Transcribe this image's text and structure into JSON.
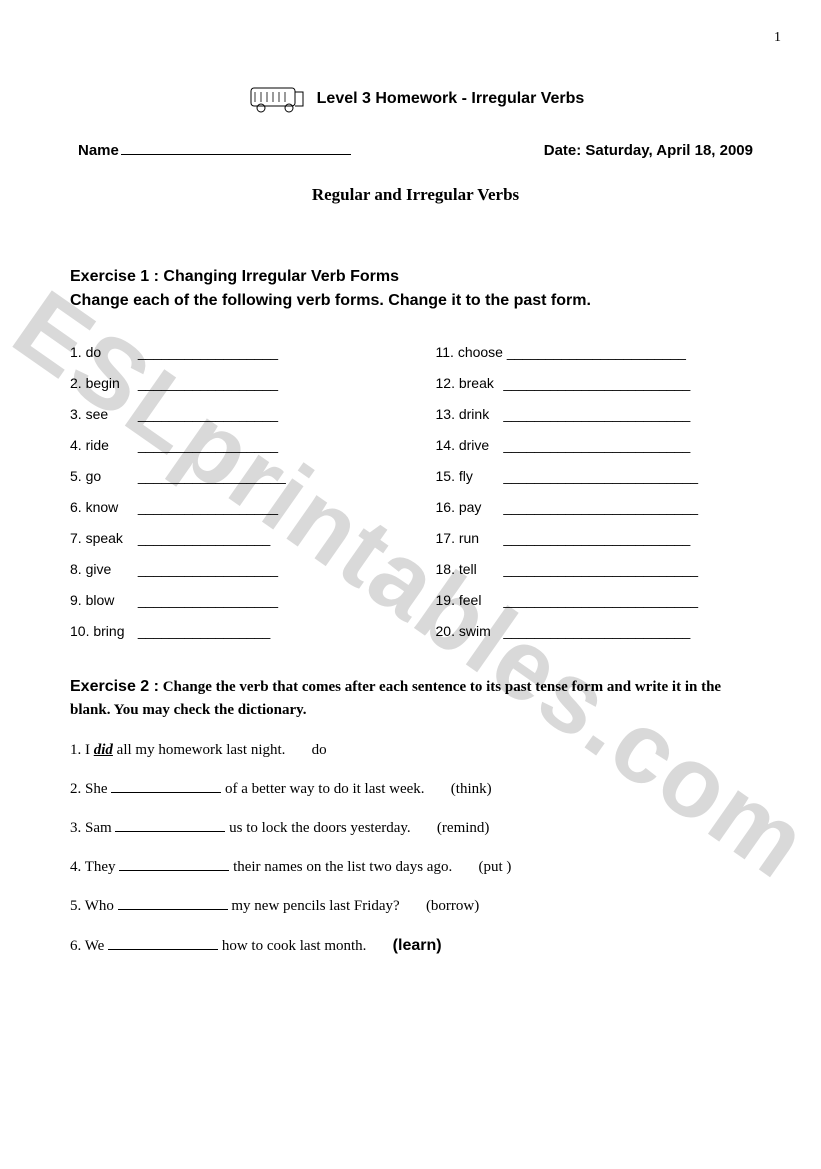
{
  "page_number": "1",
  "header": {
    "title": "Level 3  Homework - Irregular Verbs",
    "name_label": "Name",
    "date_label": "Date: Saturday, April 18, 2009",
    "subtitle": "Regular and Irregular Verbs"
  },
  "watermark": "ESLprintables.com",
  "exercise1": {
    "title_line1": "Exercise 1 : Changing Irregular Verb Forms",
    "title_line2": "Change each of the following verb forms.    Change it to the past form.",
    "left": [
      {
        "n": "1.",
        "w": "do",
        "b": "__________________"
      },
      {
        "n": "2.",
        "w": "begin",
        "b": "__________________"
      },
      {
        "n": "3.",
        "w": "see",
        "b": "__________________"
      },
      {
        "n": "4.",
        "w": "ride",
        "b": "__________________"
      },
      {
        "n": "5.",
        "w": "go",
        "b": "___________________"
      },
      {
        "n": "6.",
        "w": "know",
        "b": "__________________"
      },
      {
        "n": "7.",
        "w": "speak",
        "b": "_________________"
      },
      {
        "n": "8.",
        "w": "give",
        "b": "__________________"
      },
      {
        "n": "9.",
        "w": "blow",
        "b": "__________________"
      },
      {
        "n": "10.",
        "w": "bring",
        "b": "_________________"
      }
    ],
    "right": [
      {
        "n": "11.",
        "w": "choose",
        "b": "_______________________"
      },
      {
        "n": "12.",
        "w": "break",
        "b": "________________________"
      },
      {
        "n": "13.",
        "w": "drink",
        "b": "________________________"
      },
      {
        "n": "14.",
        "w": "drive",
        "b": "________________________"
      },
      {
        "n": "15.",
        "w": "fly",
        "b": "_________________________"
      },
      {
        "n": "16.",
        "w": "pay",
        "b": "_________________________"
      },
      {
        "n": "17.",
        "w": "run",
        "b": "________________________"
      },
      {
        "n": "18.",
        "w": "tell",
        "b": "_________________________"
      },
      {
        "n": "19.",
        "w": "feel",
        "b": "_________________________"
      },
      {
        "n": "20.",
        "w": "swim",
        "b": "________________________"
      }
    ]
  },
  "exercise2": {
    "lead": "Exercise 2 :",
    "rest": " Change the verb that comes after each sentence to its past tense form and write it in the blank. You may check the dictionary.",
    "sentences": [
      {
        "pre": "1. I ",
        "did": "did",
        "post": " all my homework last night.",
        "verb": "do",
        "paren": false,
        "bold": false
      },
      {
        "pre": "2. She ",
        "post": " of a better way to do it last week.",
        "verb": "(think)",
        "paren": true,
        "bold": false
      },
      {
        "pre": "3. Sam ",
        "post": " us to lock the doors yesterday.",
        "verb": "(remind)",
        "paren": true,
        "bold": false
      },
      {
        "pre": "4. They ",
        "post": " their names on the list two days ago.",
        "verb": "(put )",
        "paren": true,
        "bold": false
      },
      {
        "pre": "5. Who ",
        "post": " my new pencils last Friday?",
        "verb": "(borrow)",
        "paren": true,
        "bold": false
      },
      {
        "pre": "6. We ",
        "post": " how to cook last month.",
        "verb": "(learn)",
        "paren": true,
        "bold": true
      }
    ]
  }
}
